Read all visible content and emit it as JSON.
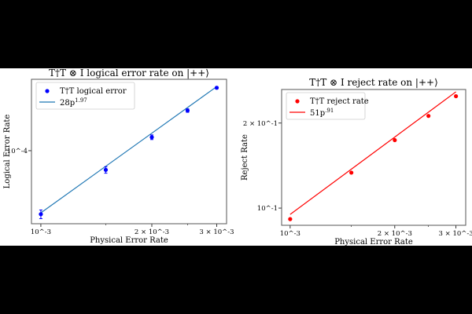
{
  "chart_data": [
    {
      "type": "scatter",
      "title": "T†T ⊗ I logical error rate on |++⟩",
      "xlabel": "Physical Error Rate",
      "ylabel": "Logical Error Rate",
      "xscale": "log",
      "yscale": "log",
      "xlim": [
        0.000943,
        0.00319
      ],
      "ylim": [
        2.86e-05,
        0.00034
      ],
      "x_ticks": [
        {
          "value": 0.001,
          "label": "10^-3"
        },
        {
          "value": 0.002,
          "label": "2 × 10^-3"
        },
        {
          "value": 0.003,
          "label": "3 × 10^-3"
        }
      ],
      "y_ticks": [
        {
          "value": 0.0001,
          "label": "10^-4"
        }
      ],
      "series": [
        {
          "name": "T†T logical error",
          "kind": "points",
          "color": "#0000ff",
          "x": [
            0.001,
            0.0015,
            0.002,
            0.0025,
            0.003
          ],
          "y": [
            3.37e-05,
            7.2e-05,
            0.000126,
            0.000199,
            0.000294
          ],
          "err": [
            2.5e-06,
            4e-06,
            5e-06,
            6e-06,
            6e-06
          ]
        },
        {
          "name": "28p^1.97",
          "kind": "fit",
          "color": "#1f77b4",
          "coef": 28,
          "power": 1.97,
          "label_base": "28p",
          "label_exp": "1.97"
        }
      ],
      "legend": "top-left"
    },
    {
      "type": "scatter",
      "title": "T†T ⊗ I reject rate on |++⟩",
      "xlabel": "Physical Error Rate",
      "ylabel": "Reject Rate",
      "xscale": "log",
      "yscale": "log",
      "xlim": [
        0.000945,
        0.0032
      ],
      "ylim": [
        0.0869,
        0.263
      ],
      "x_ticks": [
        {
          "value": 0.001,
          "label": "10^-3"
        },
        {
          "value": 0.002,
          "label": "2 × 10^-3"
        },
        {
          "value": 0.003,
          "label": "3 × 10^-3"
        }
      ],
      "y_ticks": [
        {
          "value": 0.1,
          "label": "10^-1"
        },
        {
          "value": 0.2,
          "label": "2 × 10^-1"
        }
      ],
      "series": [
        {
          "name": "T†T reject rate",
          "kind": "points",
          "color": "#ff0000",
          "x": [
            0.001,
            0.0015,
            0.002,
            0.0025,
            0.003
          ],
          "y": [
            0.0914,
            0.1335,
            0.174,
            0.212,
            0.249
          ]
        },
        {
          "name": "51p^.91",
          "kind": "fit",
          "color": "#ff0000",
          "coef": 51,
          "power": 0.91,
          "label_base": "51p",
          "label_exp": ".91"
        }
      ],
      "legend": "top-left"
    }
  ]
}
